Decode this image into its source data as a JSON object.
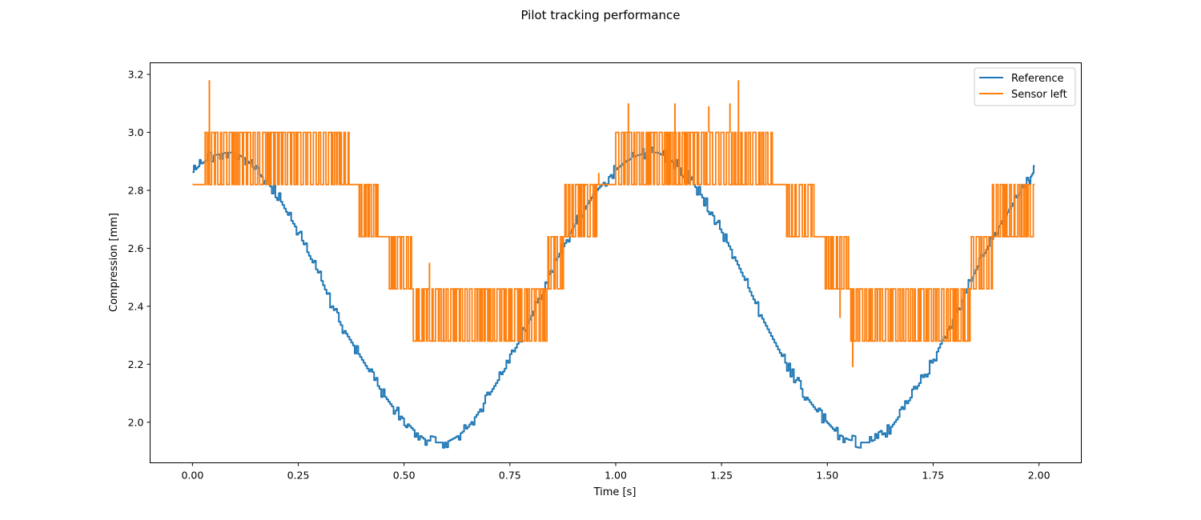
{
  "chart_data": {
    "type": "line",
    "title": "Pilot tracking performance",
    "xlabel": "Time [s]",
    "ylabel": "Compression [mm]",
    "xlim": [
      -0.1,
      2.1
    ],
    "ylim": [
      1.86,
      3.24
    ],
    "x_ticks": [
      0.0,
      0.25,
      0.5,
      0.75,
      1.0,
      1.25,
      1.5,
      1.75,
      2.0
    ],
    "x_tick_labels": [
      "0.00",
      "0.25",
      "0.50",
      "0.75",
      "1.00",
      "1.25",
      "1.50",
      "1.75",
      "2.00"
    ],
    "y_ticks": [
      2.0,
      2.2,
      2.4,
      2.6,
      2.8,
      3.0,
      3.2
    ],
    "y_tick_labels": [
      "2.0",
      "2.2",
      "2.4",
      "2.6",
      "2.8",
      "3.0",
      "3.2"
    ],
    "grid": false,
    "legend_position": "top-right",
    "series": [
      {
        "name": "Reference",
        "color": "#1f77b4",
        "x": [
          0.0,
          0.02,
          0.05,
          0.08,
          0.1,
          0.125,
          0.15,
          0.175,
          0.2,
          0.225,
          0.25,
          0.275,
          0.3,
          0.325,
          0.35,
          0.375,
          0.4,
          0.425,
          0.45,
          0.475,
          0.5,
          0.525,
          0.55,
          0.575,
          0.6,
          0.625,
          0.65,
          0.675,
          0.7,
          0.725,
          0.75,
          0.775,
          0.8,
          0.825,
          0.85,
          0.875,
          0.9,
          0.925,
          0.95,
          0.975,
          1.0,
          1.025,
          1.05,
          1.075,
          1.1,
          1.125,
          1.15,
          1.175,
          1.2,
          1.225,
          1.25,
          1.275,
          1.3,
          1.325,
          1.35,
          1.375,
          1.4,
          1.425,
          1.45,
          1.475,
          1.5,
          1.525,
          1.55,
          1.575,
          1.6,
          1.625,
          1.65,
          1.675,
          1.7,
          1.725,
          1.75,
          1.775,
          1.8,
          1.825,
          1.85,
          1.875,
          1.9,
          1.925,
          1.95,
          1.975,
          1.99
        ],
        "y": [
          2.86,
          2.89,
          2.92,
          2.93,
          2.93,
          2.91,
          2.87,
          2.83,
          2.79,
          2.72,
          2.66,
          2.58,
          2.51,
          2.42,
          2.34,
          2.28,
          2.22,
          2.16,
          2.1,
          2.05,
          2.01,
          1.97,
          1.94,
          1.93,
          1.93,
          1.95,
          1.98,
          2.03,
          2.09,
          2.15,
          2.21,
          2.29,
          2.36,
          2.45,
          2.53,
          2.6,
          2.67,
          2.73,
          2.79,
          2.83,
          2.87,
          2.9,
          2.92,
          2.93,
          2.93,
          2.91,
          2.88,
          2.84,
          2.79,
          2.73,
          2.66,
          2.59,
          2.51,
          2.43,
          2.35,
          2.28,
          2.21,
          2.15,
          2.09,
          2.04,
          2.0,
          1.96,
          1.94,
          1.93,
          1.93,
          1.95,
          1.98,
          2.03,
          2.09,
          2.15,
          2.21,
          2.29,
          2.36,
          2.44,
          2.52,
          2.59,
          2.66,
          2.72,
          2.78,
          2.83,
          2.87
        ]
      },
      {
        "name": "Sensor left",
        "color": "#ff7f0e",
        "levels": [
          2.28,
          2.46,
          2.64,
          2.82,
          3.0
        ],
        "segments": [
          {
            "x0": 0.0,
            "x1": 0.03,
            "lo": 2.82,
            "hi": 2.82
          },
          {
            "x0": 0.03,
            "x1": 0.37,
            "lo": 2.82,
            "hi": 3.0
          },
          {
            "x0": 0.37,
            "x1": 0.39,
            "lo": 2.82,
            "hi": 2.82
          },
          {
            "x0": 0.39,
            "x1": 0.44,
            "lo": 2.64,
            "hi": 2.82
          },
          {
            "x0": 0.44,
            "x1": 0.46,
            "lo": 2.64,
            "hi": 2.64
          },
          {
            "x0": 0.46,
            "x1": 0.52,
            "lo": 2.46,
            "hi": 2.64
          },
          {
            "x0": 0.52,
            "x1": 0.84,
            "lo": 2.28,
            "hi": 2.46
          },
          {
            "x0": 0.84,
            "x1": 0.88,
            "lo": 2.46,
            "hi": 2.64
          },
          {
            "x0": 0.88,
            "x1": 0.96,
            "lo": 2.64,
            "hi": 2.82
          },
          {
            "x0": 0.96,
            "x1": 1.0,
            "lo": 2.82,
            "hi": 2.82
          },
          {
            "x0": 1.0,
            "x1": 1.37,
            "lo": 2.82,
            "hi": 3.0
          },
          {
            "x0": 1.37,
            "x1": 1.4,
            "lo": 2.82,
            "hi": 2.82
          },
          {
            "x0": 1.4,
            "x1": 1.47,
            "lo": 2.64,
            "hi": 2.82
          },
          {
            "x0": 1.47,
            "x1": 1.49,
            "lo": 2.64,
            "hi": 2.64
          },
          {
            "x0": 1.49,
            "x1": 1.55,
            "lo": 2.46,
            "hi": 2.64
          },
          {
            "x0": 1.55,
            "x1": 1.84,
            "lo": 2.28,
            "hi": 2.46
          },
          {
            "x0": 1.84,
            "x1": 1.89,
            "lo": 2.46,
            "hi": 2.64
          },
          {
            "x0": 1.89,
            "x1": 1.99,
            "lo": 2.64,
            "hi": 2.82
          }
        ],
        "spikes": [
          {
            "x": 0.04,
            "y": 3.18
          },
          {
            "x": 0.56,
            "y": 2.55
          },
          {
            "x": 0.53,
            "y": 2.28
          },
          {
            "x": 0.96,
            "y": 2.86
          },
          {
            "x": 1.03,
            "y": 3.1
          },
          {
            "x": 1.14,
            "y": 3.1
          },
          {
            "x": 1.22,
            "y": 3.09
          },
          {
            "x": 1.27,
            "y": 3.1
          },
          {
            "x": 1.29,
            "y": 3.18
          },
          {
            "x": 1.56,
            "y": 2.19
          },
          {
            "x": 1.53,
            "y": 2.36
          },
          {
            "x": 0.73,
            "y": 2.28
          }
        ]
      }
    ]
  }
}
